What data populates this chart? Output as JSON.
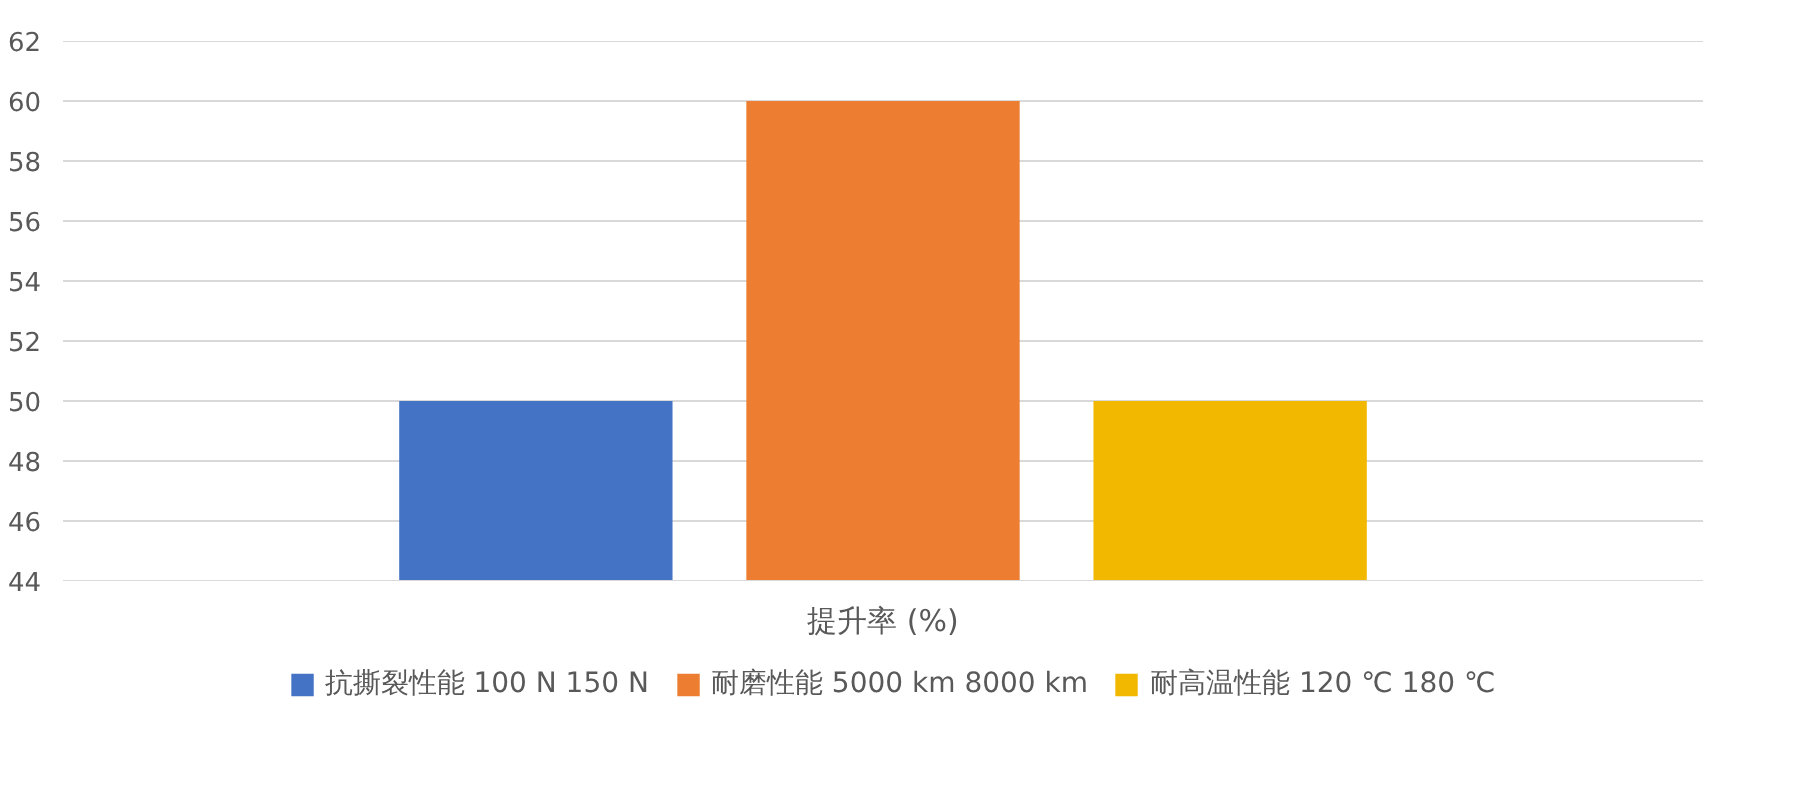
{
  "chart_data": {
    "type": "bar",
    "categories": [
      "提升率 (%)"
    ],
    "series": [
      {
        "name": "抗撕裂性能 100 N 150 N",
        "color": "#4472c4",
        "values": [
          50
        ]
      },
      {
        "name": "耐磨性能 5000 km 8000 km",
        "color": "#ed7d31",
        "values": [
          60
        ]
      },
      {
        "name": "耐高温性能 120 ℃ 180 ℃",
        "color": "#f2b800",
        "values": [
          50
        ]
      }
    ],
    "ylim": [
      44,
      62
    ],
    "yticks": [
      44,
      46,
      48,
      50,
      52,
      54,
      56,
      58,
      60,
      62
    ],
    "grid": "y",
    "legend": "bottom"
  }
}
